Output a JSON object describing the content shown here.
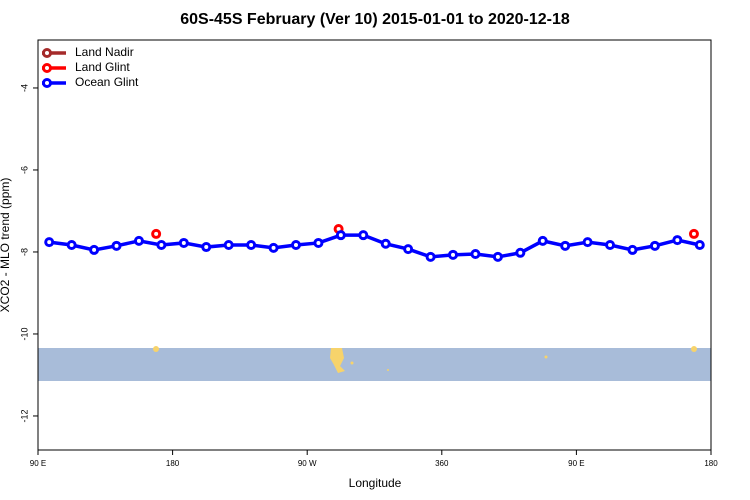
{
  "chart_data": {
    "type": "line",
    "title": "60S-45S February (Ver 10)   2015-01-01 to 2020-12-18",
    "xlabel": "Longitude",
    "ylabel": "XCO2 - MLO trend (ppm)",
    "xlim": [
      90,
      540
    ],
    "ylim": [
      -12.83,
      -2.83
    ],
    "xticks": [
      {
        "value": 90,
        "label": "90 E"
      },
      180,
      {
        "value": 270,
        "label": "90 W"
      },
      360,
      {
        "value": 450,
        "label": "90 E"
      },
      {
        "value": 540,
        "label": "180"
      }
    ],
    "yticks": [
      -4,
      -6,
      -8,
      -10,
      -12
    ],
    "legend": "top-left",
    "series": [
      {
        "name": "Land Nadir",
        "color": "#a52a2a",
        "x": [],
        "values": []
      },
      {
        "name": "Land Glint",
        "color": "#ff0000",
        "x": [
          169,
          291,
          528.6
        ],
        "values": [
          -7.56,
          -7.44,
          -7.56
        ]
      },
      {
        "name": "Ocean Glint",
        "color": "#0000ff",
        "x": [
          97.5,
          112.5,
          127.5,
          142.5,
          157.5,
          172.5,
          187.5,
          202.5,
          217.5,
          232.5,
          247.5,
          262.5,
          277.5,
          292.5,
          307.5,
          322.5,
          337.5,
          352.5,
          367.5,
          382.5,
          397.5,
          412.5,
          427.5,
          442.5,
          457.5,
          472.5,
          487.5,
          502.5,
          517.5,
          532.5
        ],
        "values": [
          -7.76,
          -7.83,
          -7.95,
          -7.85,
          -7.73,
          -7.83,
          -7.78,
          -7.88,
          -7.83,
          -7.83,
          -7.9,
          -7.83,
          -7.78,
          -7.59,
          -7.59,
          -7.8,
          -7.93,
          -8.12,
          -8.07,
          -8.05,
          -8.12,
          -8.02,
          -7.73,
          -7.85,
          -7.76,
          -7.83,
          -7.95,
          -7.85,
          -7.71,
          -7.83
        ]
      }
    ]
  }
}
